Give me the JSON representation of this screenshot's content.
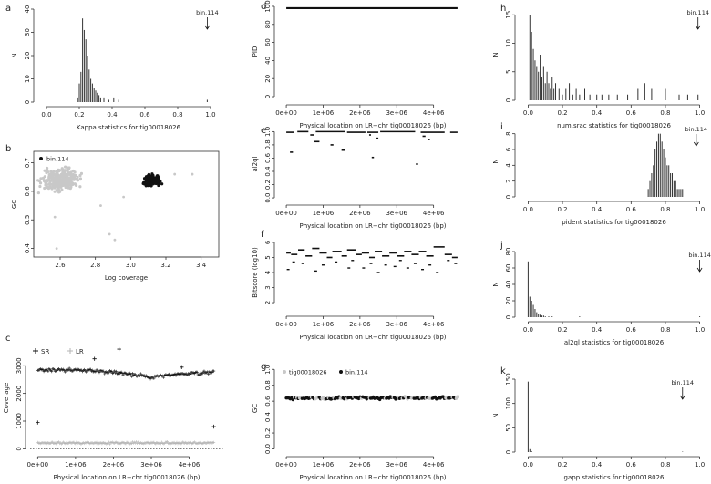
{
  "chart_data": [
    {
      "panel": "a",
      "type": "bar",
      "xlabel": "Kappa statistics for tig00018026",
      "ylabel": "N",
      "xlim": [
        -0.05,
        1.05
      ],
      "ylim": [
        0,
        40
      ],
      "xticks": [
        0.0,
        0.2,
        0.4,
        0.6,
        0.8,
        1.0
      ],
      "yticks": [
        0,
        10,
        20,
        30,
        40
      ],
      "bars": {
        "x": [
          0.19,
          0.2,
          0.21,
          0.22,
          0.23,
          0.24,
          0.25,
          0.26,
          0.27,
          0.28,
          0.29,
          0.3,
          0.31,
          0.32,
          0.33,
          0.35,
          0.38,
          0.41,
          0.44,
          0.98
        ],
        "y": [
          2,
          8,
          13,
          36,
          31,
          27,
          20,
          14,
          10,
          8,
          6,
          5,
          4,
          3,
          2,
          2,
          1,
          2,
          1,
          1
        ]
      },
      "annotation": {
        "label": "bin.114",
        "x": 0.98
      }
    },
    {
      "panel": "b",
      "type": "scatter",
      "xlabel": "Log coverage",
      "ylabel": "GC",
      "xlim": [
        2.45,
        3.5
      ],
      "ylim": [
        0.37,
        0.74
      ],
      "xticks": [
        2.6,
        2.8,
        3.0,
        3.2,
        3.4
      ],
      "yticks": [
        0.4,
        0.5,
        0.6,
        0.7
      ],
      "series": [
        {
          "name": "",
          "color": "#c8c8c8",
          "center": [
            2.6,
            0.64
          ],
          "spread": [
            0.07,
            0.025
          ],
          "n": 300
        },
        {
          "name": "bin.114",
          "color": "#111111",
          "center": [
            3.12,
            0.638
          ],
          "spread": [
            0.03,
            0.013
          ],
          "n": 160
        }
      ],
      "outliers": {
        "x": [
          2.88,
          2.91,
          2.58,
          2.57,
          2.83,
          2.96,
          3.35,
          3.25
        ],
        "y": [
          0.45,
          0.43,
          0.4,
          0.51,
          0.55,
          0.58,
          0.66,
          0.66
        ]
      },
      "legend": "top-left"
    },
    {
      "panel": "c",
      "type": "scatter",
      "xlabel": "Physical location on LR−chr tig00018026 (bp)",
      "ylabel": "Coverage",
      "xlim": [
        -200000,
        4900000
      ],
      "ylim": [
        -120,
        3800
      ],
      "xticks": [
        0,
        1000000,
        2000000,
        3000000,
        4000000
      ],
      "xtick_labels": [
        "0e+00",
        "1e+06",
        "2e+06",
        "3e+06",
        "4e+06"
      ],
      "yticks": [
        0,
        1000,
        2000,
        3000
      ],
      "series": [
        {
          "name": "SR",
          "marker": "+",
          "color": "#111111"
        },
        {
          "name": "LR",
          "marker": "+",
          "color": "#b5b5b5"
        }
      ],
      "sr_profile": [
        [
          0,
          2850
        ],
        [
          500000,
          2850
        ],
        [
          1200000,
          2850
        ],
        [
          2000000,
          2760
        ],
        [
          3000000,
          2580
        ],
        [
          3600000,
          2680
        ],
        [
          4000000,
          2720
        ],
        [
          4650000,
          2760
        ]
      ],
      "lr_level": 210,
      "sr_outliers": {
        "x": [
          0,
          2150000,
          4650000,
          1500000,
          3800000
        ],
        "y": [
          950,
          3600,
          800,
          3250,
          2950
        ]
      },
      "legend": "top-left"
    },
    {
      "panel": "d",
      "type": "line",
      "xlabel": "Physical location on LR−chr tig00018026 (bp)",
      "ylabel": "PID",
      "xlim": [
        -200000,
        4900000
      ],
      "ylim": [
        -4,
        104
      ],
      "xticks": [
        0,
        1000000,
        2000000,
        3000000,
        4000000
      ],
      "xtick_labels": [
        "0e+00",
        "1e+06",
        "2e+06",
        "3e+06",
        "4e+06"
      ],
      "yticks": [
        0,
        20,
        40,
        60,
        80,
        100
      ],
      "segment": {
        "x": [
          0,
          4650000
        ],
        "y": 98
      }
    },
    {
      "panel": "e",
      "type": "scatter",
      "xlabel": "Physical location on LR−chr tig00018026 (bp)",
      "ylabel": "al2ql",
      "xlim": [
        -200000,
        4900000
      ],
      "ylim": [
        -0.04,
        1.06
      ],
      "xticks": [
        0,
        1000000,
        2000000,
        3000000,
        4000000
      ],
      "xtick_labels": [
        "0e+00",
        "1e+06",
        "2e+06",
        "3e+06",
        "4e+06"
      ],
      "yticks": [
        0.0,
        0.2,
        0.4,
        0.6,
        0.8,
        1.0
      ],
      "segments": [
        [
          0,
          200000,
          0.99
        ],
        [
          300000,
          600000,
          1.0
        ],
        [
          650000,
          750000,
          0.95
        ],
        [
          800000,
          1600000,
          1.0
        ],
        [
          1650000,
          2150000,
          0.99
        ],
        [
          2200000,
          2500000,
          0.99
        ],
        [
          2550000,
          3500000,
          1.0
        ],
        [
          3650000,
          4300000,
          0.99
        ],
        [
          4450000,
          4650000,
          0.99
        ],
        [
          100000,
          180000,
          0.69
        ],
        [
          750000,
          900000,
          0.85
        ],
        [
          1200000,
          1280000,
          0.8
        ],
        [
          1500000,
          1600000,
          0.72
        ],
        [
          2250000,
          2300000,
          0.95
        ],
        [
          2320000,
          2380000,
          0.61
        ],
        [
          2450000,
          2500000,
          0.9
        ],
        [
          3520000,
          3580000,
          0.51
        ],
        [
          3700000,
          3780000,
          0.93
        ],
        [
          3850000,
          3900000,
          0.88
        ]
      ]
    },
    {
      "panel": "f",
      "type": "scatter",
      "xlabel": "Physical location on LR−chr tig00018026 (bp)",
      "ylabel": "Bitscore (log10)",
      "xlim": [
        -200000,
        4900000
      ],
      "ylim": [
        1.4,
        6.6
      ],
      "xticks": [
        0,
        1000000,
        2000000,
        3000000,
        4000000
      ],
      "xtick_labels": [
        "0e+00",
        "1e+06",
        "2e+06",
        "3e+06",
        "4e+06"
      ],
      "yticks": [
        2,
        3,
        4,
        5,
        6
      ],
      "upper": [
        [
          0,
          120000,
          5.3
        ],
        [
          130000,
          300000,
          5.2
        ],
        [
          320000,
          500000,
          5.5
        ],
        [
          520000,
          700000,
          5.1
        ],
        [
          700000,
          900000,
          5.6
        ],
        [
          900000,
          1100000,
          5.3
        ],
        [
          1100000,
          1250000,
          5.0
        ],
        [
          1250000,
          1500000,
          5.4
        ],
        [
          1500000,
          1650000,
          5.1
        ],
        [
          1650000,
          1900000,
          5.5
        ],
        [
          1900000,
          2050000,
          5.2
        ],
        [
          2050000,
          2250000,
          5.3
        ],
        [
          2250000,
          2400000,
          5.0
        ],
        [
          2400000,
          2600000,
          5.4
        ],
        [
          2600000,
          2800000,
          5.1
        ],
        [
          2800000,
          3000000,
          5.3
        ],
        [
          3000000,
          3200000,
          5.1
        ],
        [
          3200000,
          3400000,
          5.4
        ],
        [
          3400000,
          3600000,
          5.2
        ],
        [
          3600000,
          3800000,
          5.4
        ],
        [
          3800000,
          4000000,
          5.1
        ],
        [
          4000000,
          4300000,
          5.7
        ],
        [
          4300000,
          4500000,
          5.2
        ],
        [
          4500000,
          4650000,
          5.0
        ]
      ],
      "lower": [
        [
          50000,
          4.2
        ],
        [
          200000,
          4.7
        ],
        [
          450000,
          4.6
        ],
        [
          800000,
          4.1
        ],
        [
          1000000,
          4.5
        ],
        [
          1350000,
          4.7
        ],
        [
          1700000,
          4.3
        ],
        [
          1800000,
          4.8
        ],
        [
          2100000,
          4.3
        ],
        [
          2300000,
          4.6
        ],
        [
          2500000,
          4.0
        ],
        [
          2700000,
          4.5
        ],
        [
          2950000,
          4.4
        ],
        [
          3100000,
          4.8
        ],
        [
          3300000,
          4.3
        ],
        [
          3500000,
          4.6
        ],
        [
          3700000,
          4.2
        ],
        [
          3900000,
          4.5
        ],
        [
          4100000,
          4.0
        ],
        [
          4400000,
          4.8
        ],
        [
          4600000,
          4.6
        ]
      ]
    },
    {
      "panel": "g",
      "type": "scatter",
      "xlabel": "Physical location on LR−chr tig00018026 (bp)",
      "ylabel": "GC",
      "xlim": [
        -200000,
        4900000
      ],
      "ylim": [
        -0.04,
        1.06
      ],
      "xticks": [
        0,
        1000000,
        2000000,
        3000000,
        4000000
      ],
      "xtick_labels": [
        "0e+00",
        "1e+06",
        "2e+06",
        "3e+06",
        "4e+06"
      ],
      "yticks": [
        0.0,
        0.2,
        0.4,
        0.6,
        0.8,
        1.0
      ],
      "series": [
        {
          "name": "tig00018026",
          "color": "#c8c8c8"
        },
        {
          "name": "bin.114",
          "color": "#111111"
        }
      ],
      "gc_mean": 0.64,
      "x_range": [
        0,
        4650000
      ],
      "legend": "top-left"
    },
    {
      "panel": "h",
      "type": "bar",
      "xlabel": "num.srac statistics for tig00018026",
      "ylabel": "N",
      "xlim": [
        -0.05,
        1.05
      ],
      "ylim": [
        0,
        16
      ],
      "xticks": [
        0.0,
        0.2,
        0.4,
        0.6,
        0.8,
        1.0
      ],
      "yticks": [
        0,
        5,
        10,
        15
      ],
      "bars": {
        "x": [
          0.01,
          0.02,
          0.03,
          0.04,
          0.05,
          0.06,
          0.07,
          0.08,
          0.09,
          0.1,
          0.11,
          0.12,
          0.13,
          0.14,
          0.15,
          0.16,
          0.18,
          0.2,
          0.22,
          0.24,
          0.26,
          0.28,
          0.3,
          0.33,
          0.36,
          0.4,
          0.43,
          0.47,
          0.52,
          0.58,
          0.64,
          0.68,
          0.72,
          0.8,
          0.88,
          0.93,
          0.99
        ],
        "y": [
          15,
          12,
          9,
          7,
          6,
          5,
          8,
          4,
          6,
          3,
          5,
          3,
          2,
          4,
          2,
          3,
          2,
          1,
          2,
          3,
          1,
          2,
          1,
          2,
          1,
          1,
          1,
          1,
          1,
          1,
          2,
          3,
          2,
          2,
          1,
          1,
          1
        ]
      },
      "annotation": {
        "label": "bin.114",
        "x": 0.99
      }
    },
    {
      "panel": "i",
      "type": "bar",
      "xlabel": "pident statistics for tig00018026",
      "ylabel": "N",
      "xlim": [
        -0.05,
        1.05
      ],
      "ylim": [
        0,
        9
      ],
      "xticks": [
        0.0,
        0.2,
        0.4,
        0.6,
        0.8,
        1.0
      ],
      "yticks": [
        0,
        2,
        4,
        6,
        8
      ],
      "bars": {
        "x": [
          0.7,
          0.71,
          0.72,
          0.73,
          0.74,
          0.75,
          0.76,
          0.77,
          0.78,
          0.79,
          0.8,
          0.81,
          0.82,
          0.83,
          0.84,
          0.85,
          0.86,
          0.87,
          0.88,
          0.89,
          0.9
        ],
        "y": [
          1,
          2,
          3,
          4,
          6,
          7,
          8,
          8,
          7,
          6,
          5,
          4,
          4,
          3,
          3,
          2,
          2,
          1,
          1,
          1,
          1
        ]
      },
      "annotation": {
        "label": "bin.114",
        "x": 0.98
      }
    },
    {
      "panel": "j",
      "type": "bar",
      "xlabel": "al2ql statistics for tig00018026",
      "ylabel": "N",
      "xlim": [
        -0.05,
        1.05
      ],
      "ylim": [
        0,
        80
      ],
      "xticks": [
        0.0,
        0.2,
        0.4,
        0.6,
        0.8,
        1.0
      ],
      "yticks": [
        0,
        20,
        40,
        60,
        80
      ],
      "bars": {
        "x": [
          0.0,
          0.01,
          0.02,
          0.03,
          0.04,
          0.05,
          0.06,
          0.07,
          0.08,
          0.09,
          0.1,
          0.12,
          0.14,
          0.3,
          1.0
        ],
        "y": [
          68,
          25,
          20,
          15,
          10,
          6,
          4,
          3,
          2,
          2,
          1,
          1,
          1,
          1,
          1
        ]
      },
      "annotation": {
        "label": "bin.114",
        "x": 1.0
      }
    },
    {
      "panel": "k",
      "type": "bar",
      "xlabel": "gapp statistics for tig00018026",
      "ylabel": "N",
      "xlim": [
        -0.05,
        1.05
      ],
      "ylim": [
        0,
        150
      ],
      "xticks": [
        0.0,
        0.2,
        0.4,
        0.6,
        0.8,
        1.0
      ],
      "yticks": [
        0,
        50,
        100,
        150
      ],
      "bars": {
        "x": [
          0.0,
          0.01,
          0.02,
          0.9
        ],
        "y": [
          145,
          6,
          2,
          1
        ]
      },
      "annotation": {
        "label": "bin.114",
        "x": 0.9
      }
    }
  ]
}
